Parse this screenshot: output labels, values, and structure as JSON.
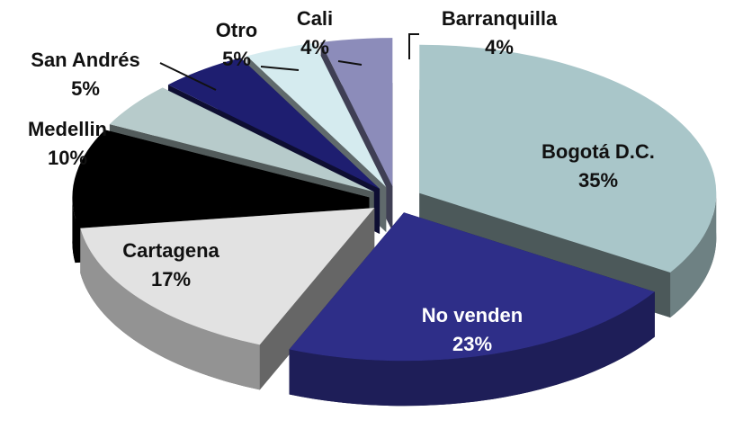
{
  "chart_data": {
    "type": "pie",
    "categories": [
      "Bogotá D.C.",
      "No venden",
      "Cartagena",
      "Medellin",
      "San Andrés",
      "Otro",
      "Cali",
      "Barranquilla"
    ],
    "values": [
      35,
      23,
      17,
      10,
      5,
      5,
      4,
      4
    ],
    "value_labels": [
      "35%",
      "23%",
      "17%",
      "10%",
      "5%",
      "5%",
      "4%",
      "4%"
    ],
    "colors": [
      "#a9c6c9",
      "#2e2e88",
      "#e2e2e2",
      "#000000",
      "#b7cbcb",
      "#1e1e70",
      "#d5ebef",
      "#8c8cba"
    ]
  }
}
